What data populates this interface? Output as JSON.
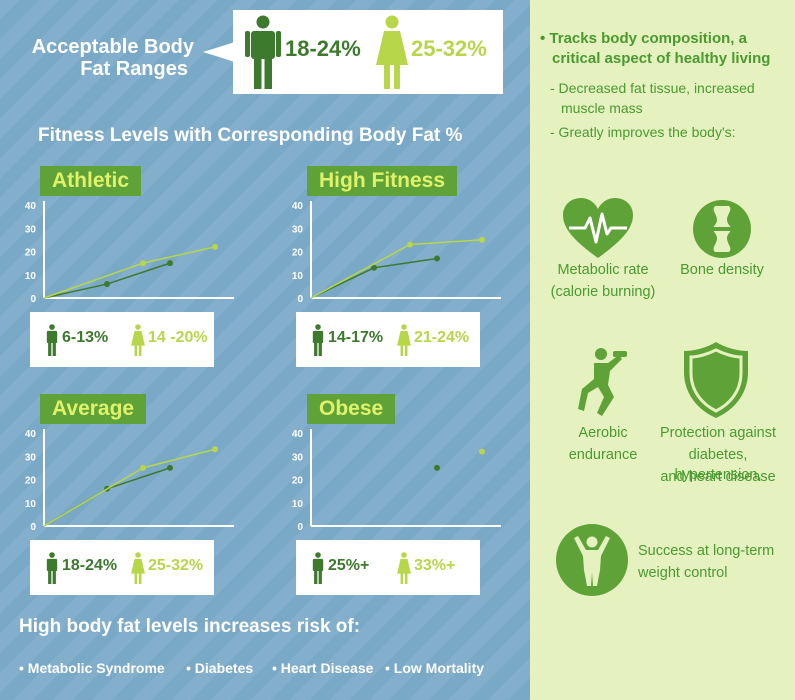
{
  "header": {
    "title_line1": "Acceptable Body",
    "title_line2": "Fat Ranges",
    "male_range": "18-24%",
    "female_range": "25-32%"
  },
  "fitness_title": "Fitness Levels with Corresponding Body Fat %",
  "levels": [
    {
      "label": "Athletic",
      "male": "6-13%",
      "female": "14 -20%"
    },
    {
      "label": "High Fitness",
      "male": "14-17%",
      "female": "21-24%"
    },
    {
      "label": "Average",
      "male": "18-24%",
      "female": "25-32%"
    },
    {
      "label": "Obese",
      "male": "25%+",
      "female": "33%+"
    }
  ],
  "chart_data": [
    {
      "type": "line",
      "yticks": [
        "0",
        "10",
        "20",
        "30",
        "40"
      ],
      "ylim": [
        0,
        40
      ],
      "series": [
        {
          "points": [
            [
              0,
              0
            ],
            [
              0.35,
              6
            ],
            [
              0.7,
              15
            ]
          ]
        },
        {
          "points": [
            [
              0,
              0
            ],
            [
              0.55,
              15
            ],
            [
              0.95,
              22
            ]
          ]
        }
      ]
    },
    {
      "type": "line",
      "yticks": [
        "0",
        "10",
        "20",
        "30",
        "40"
      ],
      "ylim": [
        0,
        40
      ],
      "series": [
        {
          "points": [
            [
              0,
              0
            ],
            [
              0.35,
              13
            ],
            [
              0.7,
              17
            ]
          ]
        },
        {
          "points": [
            [
              0,
              0
            ],
            [
              0.55,
              23
            ],
            [
              0.95,
              25
            ]
          ]
        }
      ]
    },
    {
      "type": "line",
      "yticks": [
        "0",
        "10",
        "20",
        "30",
        "40"
      ],
      "ylim": [
        0,
        40
      ],
      "series": [
        {
          "points": [
            [
              0,
              0
            ],
            [
              0.35,
              16
            ],
            [
              0.7,
              25
            ]
          ]
        },
        {
          "points": [
            [
              0,
              0
            ],
            [
              0.55,
              25
            ],
            [
              0.95,
              33
            ]
          ]
        }
      ]
    },
    {
      "type": "scatter",
      "yticks": [
        "0",
        "10",
        "20",
        "30",
        "40"
      ],
      "ylim": [
        0,
        40
      ],
      "series": [
        {
          "points": [
            [
              0.7,
              25
            ]
          ]
        },
        {
          "points": [
            [
              0.95,
              32
            ]
          ]
        }
      ]
    }
  ],
  "risk": {
    "title": "High body fat levels increases risk of:",
    "items": [
      "Metabolic Syndrome",
      "Diabetes",
      "Heart Disease",
      "Low Mortality"
    ]
  },
  "right": {
    "bullet_line1": "• Tracks body composition, a",
    "bullet_line2": "critical aspect of healthy living",
    "sub1_line1": "- Decreased fat tissue, increased",
    "sub1_line2": "muscle mass",
    "sub2": "- Greatly improves the body's:",
    "benefits": [
      {
        "icon": "heart-rate-icon",
        "line1": "Metabolic rate",
        "line2": "(calorie burning)"
      },
      {
        "icon": "bone-icon",
        "line1": "Bone density",
        "line2": ""
      },
      {
        "icon": "runner-icon",
        "line1": "Aerobic",
        "line2": "endurance"
      },
      {
        "icon": "shield-icon",
        "line1": "Protection against",
        "line2": "diabetes, hypertension,",
        "line3": "and heart disease"
      },
      {
        "icon": "success-person-icon",
        "line1": "Success at long-term",
        "line2": "weight control"
      }
    ]
  },
  "colors": {
    "male": "#3d7a2e",
    "female": "#b7d64a",
    "accent": "#5fa338",
    "blue_bg": "#7aa9c8",
    "right_bg": "#e6f1c0"
  }
}
